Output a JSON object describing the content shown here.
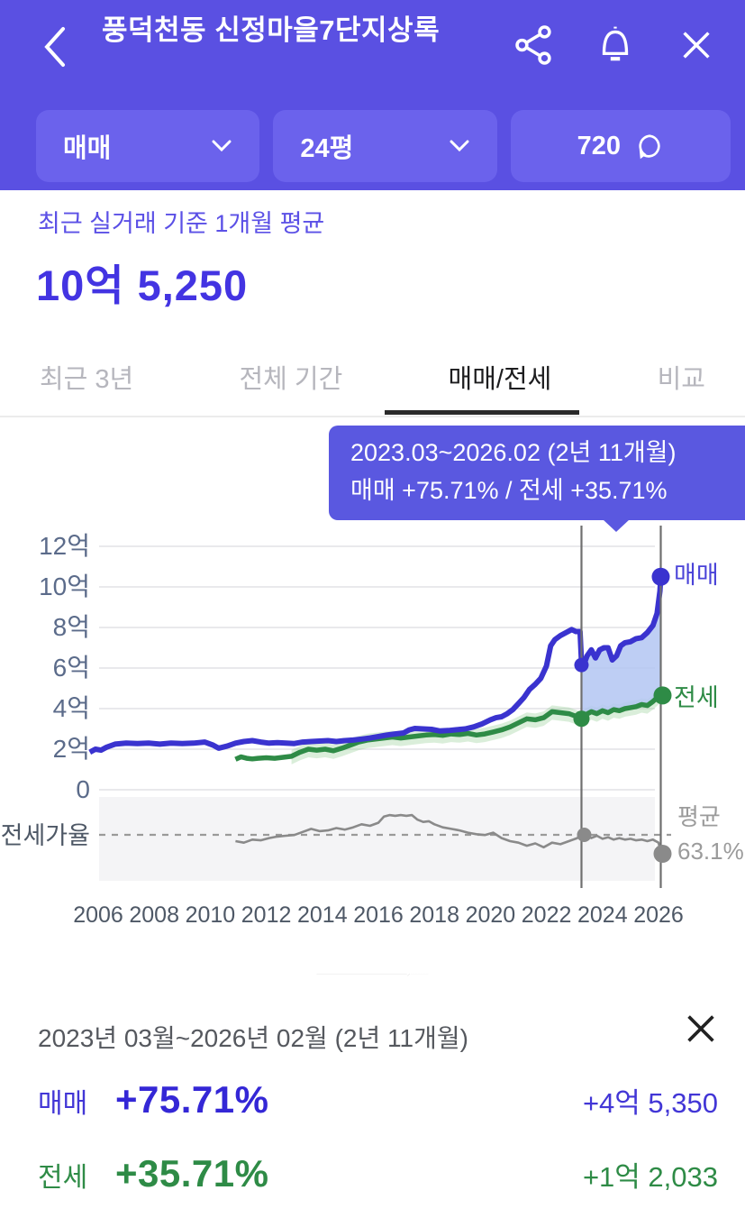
{
  "header": {
    "title": "풍덕천동 신정마을7단지상록",
    "icons": {
      "back": "chevron-left",
      "share": "share-nodes",
      "alarm": "bell",
      "close": "x"
    }
  },
  "filters": {
    "trade_type": {
      "label": "매매"
    },
    "size": {
      "label": "24평"
    },
    "chat": {
      "count": "720"
    }
  },
  "summary": {
    "caption": "최근 실거래 기준 1개월 평균",
    "price": "10억 5,250"
  },
  "tabs": [
    {
      "label": "최근 3년",
      "active": false
    },
    {
      "label": "전체 기간",
      "active": false
    },
    {
      "label": "매매/전세",
      "active": true
    },
    {
      "label": "비교",
      "active": false
    }
  ],
  "tooltip": {
    "line1": "2023.03~2026.02 (2년 11개월)",
    "line2": "매매 +75.71%  /  전세 +35.71%"
  },
  "chart_data": {
    "type": "line",
    "title": "매매/전세 실거래 추이",
    "ylabel_unit": "억",
    "sub_axis_label": "전세가율",
    "legend": {
      "sale": "매매",
      "jeonse": "전세",
      "avg_line1": "평균",
      "avg_line2": "63.1%"
    },
    "colors": {
      "sale": "#3a33cf",
      "jeonse": "#2e8b46",
      "ratio": "#8a8a8a",
      "fill_selection": "#b3c6f2",
      "jeonse_band": "#8cc98c",
      "grid": "#e9e9ec",
      "marker_line": "#6f6f6f",
      "avg_text": "#9b9b9b",
      "axis_text": "#5b6b8a",
      "xaxis_text": "#4e5866",
      "sub_band_bg": "#f4f4f6"
    },
    "y_ticks": [
      {
        "label": "12억",
        "v": 12
      },
      {
        "label": "10억",
        "v": 10
      },
      {
        "label": "8억",
        "v": 8
      },
      {
        "label": "6억",
        "v": 6
      },
      {
        "label": "4억",
        "v": 4
      },
      {
        "label": "2억",
        "v": 2
      },
      {
        "label": "0",
        "v": 0
      }
    ],
    "x_ticks": [
      "2006",
      "2008",
      "2010",
      "2012",
      "2014",
      "2016",
      "2018",
      "2020",
      "2022",
      "2024",
      "2026"
    ],
    "x_years": [
      2006,
      2008,
      2010,
      2012,
      2014,
      2016,
      2018,
      2020,
      2022,
      2024,
      2026
    ],
    "selection": {
      "start_year": 2023.25,
      "end_year": 2026.08,
      "avg_ratio_pct": 63.1
    },
    "series": [
      {
        "name": "매매",
        "key": "sale",
        "points": [
          [
            2005.7,
            1.85
          ],
          [
            2005.9,
            2.0
          ],
          [
            2006.1,
            1.95
          ],
          [
            2006.3,
            2.1
          ],
          [
            2006.6,
            2.25
          ],
          [
            2007,
            2.3
          ],
          [
            2007.4,
            2.28
          ],
          [
            2007.8,
            2.3
          ],
          [
            2008.2,
            2.25
          ],
          [
            2008.6,
            2.3
          ],
          [
            2009,
            2.28
          ],
          [
            2009.4,
            2.3
          ],
          [
            2009.8,
            2.35
          ],
          [
            2010.1,
            2.2
          ],
          [
            2010.3,
            2.05
          ],
          [
            2010.6,
            2.15
          ],
          [
            2010.9,
            2.3
          ],
          [
            2011.2,
            2.38
          ],
          [
            2011.5,
            2.42
          ],
          [
            2011.8,
            2.35
          ],
          [
            2012.1,
            2.3
          ],
          [
            2012.4,
            2.32
          ],
          [
            2012.7,
            2.3
          ],
          [
            2013,
            2.28
          ],
          [
            2013.3,
            2.35
          ],
          [
            2013.6,
            2.38
          ],
          [
            2013.9,
            2.4
          ],
          [
            2014.2,
            2.42
          ],
          [
            2014.5,
            2.38
          ],
          [
            2014.8,
            2.42
          ],
          [
            2015.1,
            2.45
          ],
          [
            2015.4,
            2.5
          ],
          [
            2015.7,
            2.55
          ],
          [
            2016,
            2.62
          ],
          [
            2016.3,
            2.7
          ],
          [
            2016.6,
            2.75
          ],
          [
            2016.9,
            2.8
          ],
          [
            2017.1,
            2.95
          ],
          [
            2017.3,
            3.02
          ],
          [
            2017.6,
            3.0
          ],
          [
            2017.9,
            2.98
          ],
          [
            2018.2,
            2.9
          ],
          [
            2018.5,
            2.92
          ],
          [
            2018.8,
            2.96
          ],
          [
            2019.1,
            3.0
          ],
          [
            2019.4,
            3.1
          ],
          [
            2019.7,
            3.25
          ],
          [
            2020,
            3.45
          ],
          [
            2020.2,
            3.55
          ],
          [
            2020.4,
            3.6
          ],
          [
            2020.6,
            3.75
          ],
          [
            2020.8,
            3.95
          ],
          [
            2021,
            4.25
          ],
          [
            2021.2,
            4.55
          ],
          [
            2021.4,
            4.95
          ],
          [
            2021.6,
            5.2
          ],
          [
            2021.8,
            5.5
          ],
          [
            2022,
            6.1
          ],
          [
            2022.15,
            7.1
          ],
          [
            2022.3,
            7.4
          ],
          [
            2022.5,
            7.6
          ],
          [
            2022.7,
            7.75
          ],
          [
            2022.9,
            7.9
          ],
          [
            2023.05,
            7.8
          ],
          [
            2023.2,
            7.8
          ],
          [
            2023.25,
            6.3
          ],
          [
            2023.3,
            6.05
          ],
          [
            2023.45,
            6.6
          ],
          [
            2023.6,
            6.9
          ],
          [
            2023.75,
            6.5
          ],
          [
            2023.9,
            6.9
          ],
          [
            2024.05,
            7.0
          ],
          [
            2024.2,
            7.0
          ],
          [
            2024.35,
            6.4
          ],
          [
            2024.5,
            6.6
          ],
          [
            2024.65,
            7.1
          ],
          [
            2024.8,
            7.25
          ],
          [
            2025,
            7.3
          ],
          [
            2025.2,
            7.45
          ],
          [
            2025.4,
            7.5
          ],
          [
            2025.6,
            7.75
          ],
          [
            2025.8,
            8.1
          ],
          [
            2025.95,
            8.7
          ],
          [
            2026.05,
            9.8
          ],
          [
            2026.08,
            10.5
          ]
        ]
      },
      {
        "name": "전세",
        "key": "jeonse",
        "points": [
          [
            2010.9,
            1.5
          ],
          [
            2011.1,
            1.62
          ],
          [
            2011.3,
            1.55
          ],
          [
            2011.5,
            1.52
          ],
          [
            2011.7,
            1.55
          ],
          [
            2012,
            1.58
          ],
          [
            2012.3,
            1.55
          ],
          [
            2012.6,
            1.6
          ],
          [
            2012.9,
            1.65
          ],
          [
            2013.2,
            1.85
          ],
          [
            2013.5,
            2.0
          ],
          [
            2013.8,
            1.95
          ],
          [
            2014.1,
            2.0
          ],
          [
            2014.4,
            1.92
          ],
          [
            2014.7,
            2.05
          ],
          [
            2015,
            2.2
          ],
          [
            2015.3,
            2.35
          ],
          [
            2015.6,
            2.45
          ],
          [
            2015.9,
            2.5
          ],
          [
            2016.2,
            2.55
          ],
          [
            2016.5,
            2.6
          ],
          [
            2016.8,
            2.55
          ],
          [
            2017.1,
            2.6
          ],
          [
            2017.4,
            2.65
          ],
          [
            2017.7,
            2.7
          ],
          [
            2018,
            2.72
          ],
          [
            2018.3,
            2.68
          ],
          [
            2018.6,
            2.75
          ],
          [
            2018.9,
            2.72
          ],
          [
            2019.2,
            2.78
          ],
          [
            2019.5,
            2.7
          ],
          [
            2019.8,
            2.75
          ],
          [
            2020.1,
            2.85
          ],
          [
            2020.4,
            2.95
          ],
          [
            2020.7,
            3.1
          ],
          [
            2021,
            3.3
          ],
          [
            2021.3,
            3.5
          ],
          [
            2021.6,
            3.45
          ],
          [
            2021.9,
            3.55
          ],
          [
            2022.2,
            3.85
          ],
          [
            2022.5,
            3.8
          ],
          [
            2022.8,
            3.75
          ],
          [
            2023.1,
            3.6
          ],
          [
            2023.25,
            3.5
          ],
          [
            2023.4,
            3.7
          ],
          [
            2023.6,
            3.85
          ],
          [
            2023.8,
            3.75
          ],
          [
            2024,
            3.9
          ],
          [
            2024.2,
            3.8
          ],
          [
            2024.4,
            3.95
          ],
          [
            2024.6,
            3.9
          ],
          [
            2024.8,
            4.0
          ],
          [
            2025,
            4.05
          ],
          [
            2025.2,
            4.1
          ],
          [
            2025.4,
            4.2
          ],
          [
            2025.6,
            4.15
          ],
          [
            2025.8,
            4.35
          ],
          [
            2026,
            4.6
          ],
          [
            2026.08,
            4.65
          ]
        ]
      },
      {
        "name": "전세가율(%)",
        "key": "ratio",
        "points": [
          [
            2010.9,
            59
          ],
          [
            2011.2,
            58
          ],
          [
            2011.5,
            60
          ],
          [
            2011.8,
            59.5
          ],
          [
            2012.1,
            61
          ],
          [
            2012.4,
            62
          ],
          [
            2012.7,
            62.5
          ],
          [
            2013,
            63
          ],
          [
            2013.3,
            65
          ],
          [
            2013.6,
            67
          ],
          [
            2013.9,
            65.5
          ],
          [
            2014.2,
            66
          ],
          [
            2014.5,
            67.5
          ],
          [
            2014.8,
            66.5
          ],
          [
            2015.1,
            68
          ],
          [
            2015.4,
            70
          ],
          [
            2015.7,
            69
          ],
          [
            2016,
            71
          ],
          [
            2016.2,
            75
          ],
          [
            2016.4,
            76
          ],
          [
            2016.6,
            75.5
          ],
          [
            2016.8,
            76
          ],
          [
            2017,
            75.5
          ],
          [
            2017.2,
            76
          ],
          [
            2017.4,
            73
          ],
          [
            2017.6,
            71.5
          ],
          [
            2017.8,
            72
          ],
          [
            2018,
            70
          ],
          [
            2018.3,
            68
          ],
          [
            2018.6,
            67
          ],
          [
            2018.9,
            66
          ],
          [
            2019.2,
            64.5
          ],
          [
            2019.5,
            63.5
          ],
          [
            2019.8,
            63
          ],
          [
            2020.1,
            64.5
          ],
          [
            2020.4,
            61
          ],
          [
            2020.7,
            59
          ],
          [
            2021,
            58
          ],
          [
            2021.3,
            56
          ],
          [
            2021.6,
            57.5
          ],
          [
            2021.9,
            55
          ],
          [
            2022.2,
            58
          ],
          [
            2022.5,
            57
          ],
          [
            2022.8,
            59
          ],
          [
            2023.1,
            61
          ],
          [
            2023.25,
            63
          ],
          [
            2023.4,
            64
          ],
          [
            2023.6,
            61
          ],
          [
            2023.8,
            62.5
          ],
          [
            2024,
            60.5
          ],
          [
            2024.2,
            61.5
          ],
          [
            2024.4,
            60
          ],
          [
            2024.6,
            61
          ],
          [
            2024.8,
            60
          ],
          [
            2025,
            60.5
          ],
          [
            2025.2,
            59.5
          ],
          [
            2025.4,
            60
          ],
          [
            2025.6,
            59
          ],
          [
            2025.8,
            60
          ],
          [
            2026,
            58
          ],
          [
            2026.08,
            52
          ]
        ]
      }
    ]
  },
  "detail_panel": {
    "period": "2023년 03월~2026년 02월 (2년 11개월)",
    "rows": [
      {
        "label": "매매",
        "pct": "+75.71%",
        "amount": "+4억 5,350"
      },
      {
        "label": "전세",
        "pct": "+35.71%",
        "amount": "+1억 2,033"
      }
    ]
  }
}
